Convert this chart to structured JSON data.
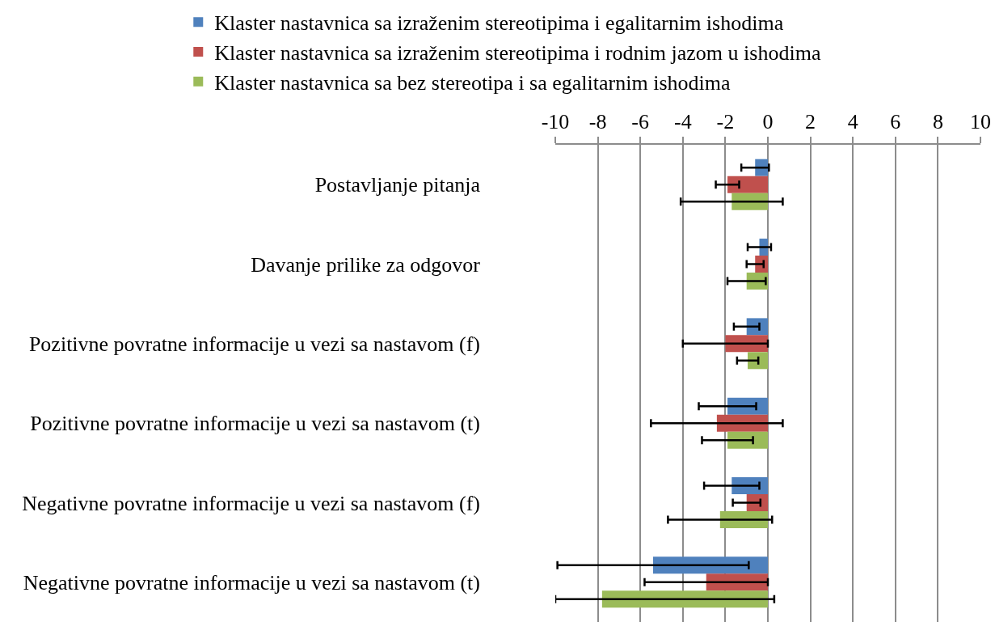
{
  "chart_data": {
    "type": "bar",
    "orientation": "horizontal",
    "categories": [
      "Postavljanje pitanja",
      "Davanje prilike za odgovor",
      "Pozitivne povratne informacije u vezi sa nastavom (f)",
      "Pozitivne povratne informacije u vezi sa nastavom (t)",
      "Negativne povratne informacije u vezi sa nastavom (f)",
      "Negativne povratne informacije u vezi sa nastavom (t)"
    ],
    "series": [
      {
        "name": "Klaster nastavnica sa izraženim stereotipima i egalitarnim ishodima",
        "color": "#4f81bd",
        "values": [
          -0.6,
          -0.4,
          -1.0,
          -1.9,
          -1.7,
          -5.4
        ],
        "errors": [
          0.65,
          0.55,
          0.6,
          1.35,
          1.3,
          4.5
        ]
      },
      {
        "name": "Klaster nastavnica sa izraženim stereotipima i rodnim jazom u ishodima",
        "color": "#c0504d",
        "values": [
          -1.9,
          -0.6,
          -2.0,
          -2.4,
          -1.0,
          -2.9
        ],
        "errors": [
          0.55,
          0.4,
          2.0,
          3.1,
          0.65,
          2.9
        ]
      },
      {
        "name": "Klaster nastavnica sa bez stereotipa i sa egalitarnim ishodima",
        "color": "#9bbb59",
        "values": [
          -1.7,
          -1.0,
          -0.95,
          -1.9,
          -2.25,
          -7.8
        ],
        "errors": [
          2.4,
          0.9,
          0.5,
          1.2,
          2.45,
          [
            -10,
            0.3
          ]
        ]
      }
    ],
    "xlim": [
      -10,
      10
    ],
    "xticks": [
      -10,
      -8,
      -6,
      -4,
      -2,
      0,
      2,
      4,
      6,
      8,
      10
    ],
    "grid": "x",
    "legend": "top"
  }
}
